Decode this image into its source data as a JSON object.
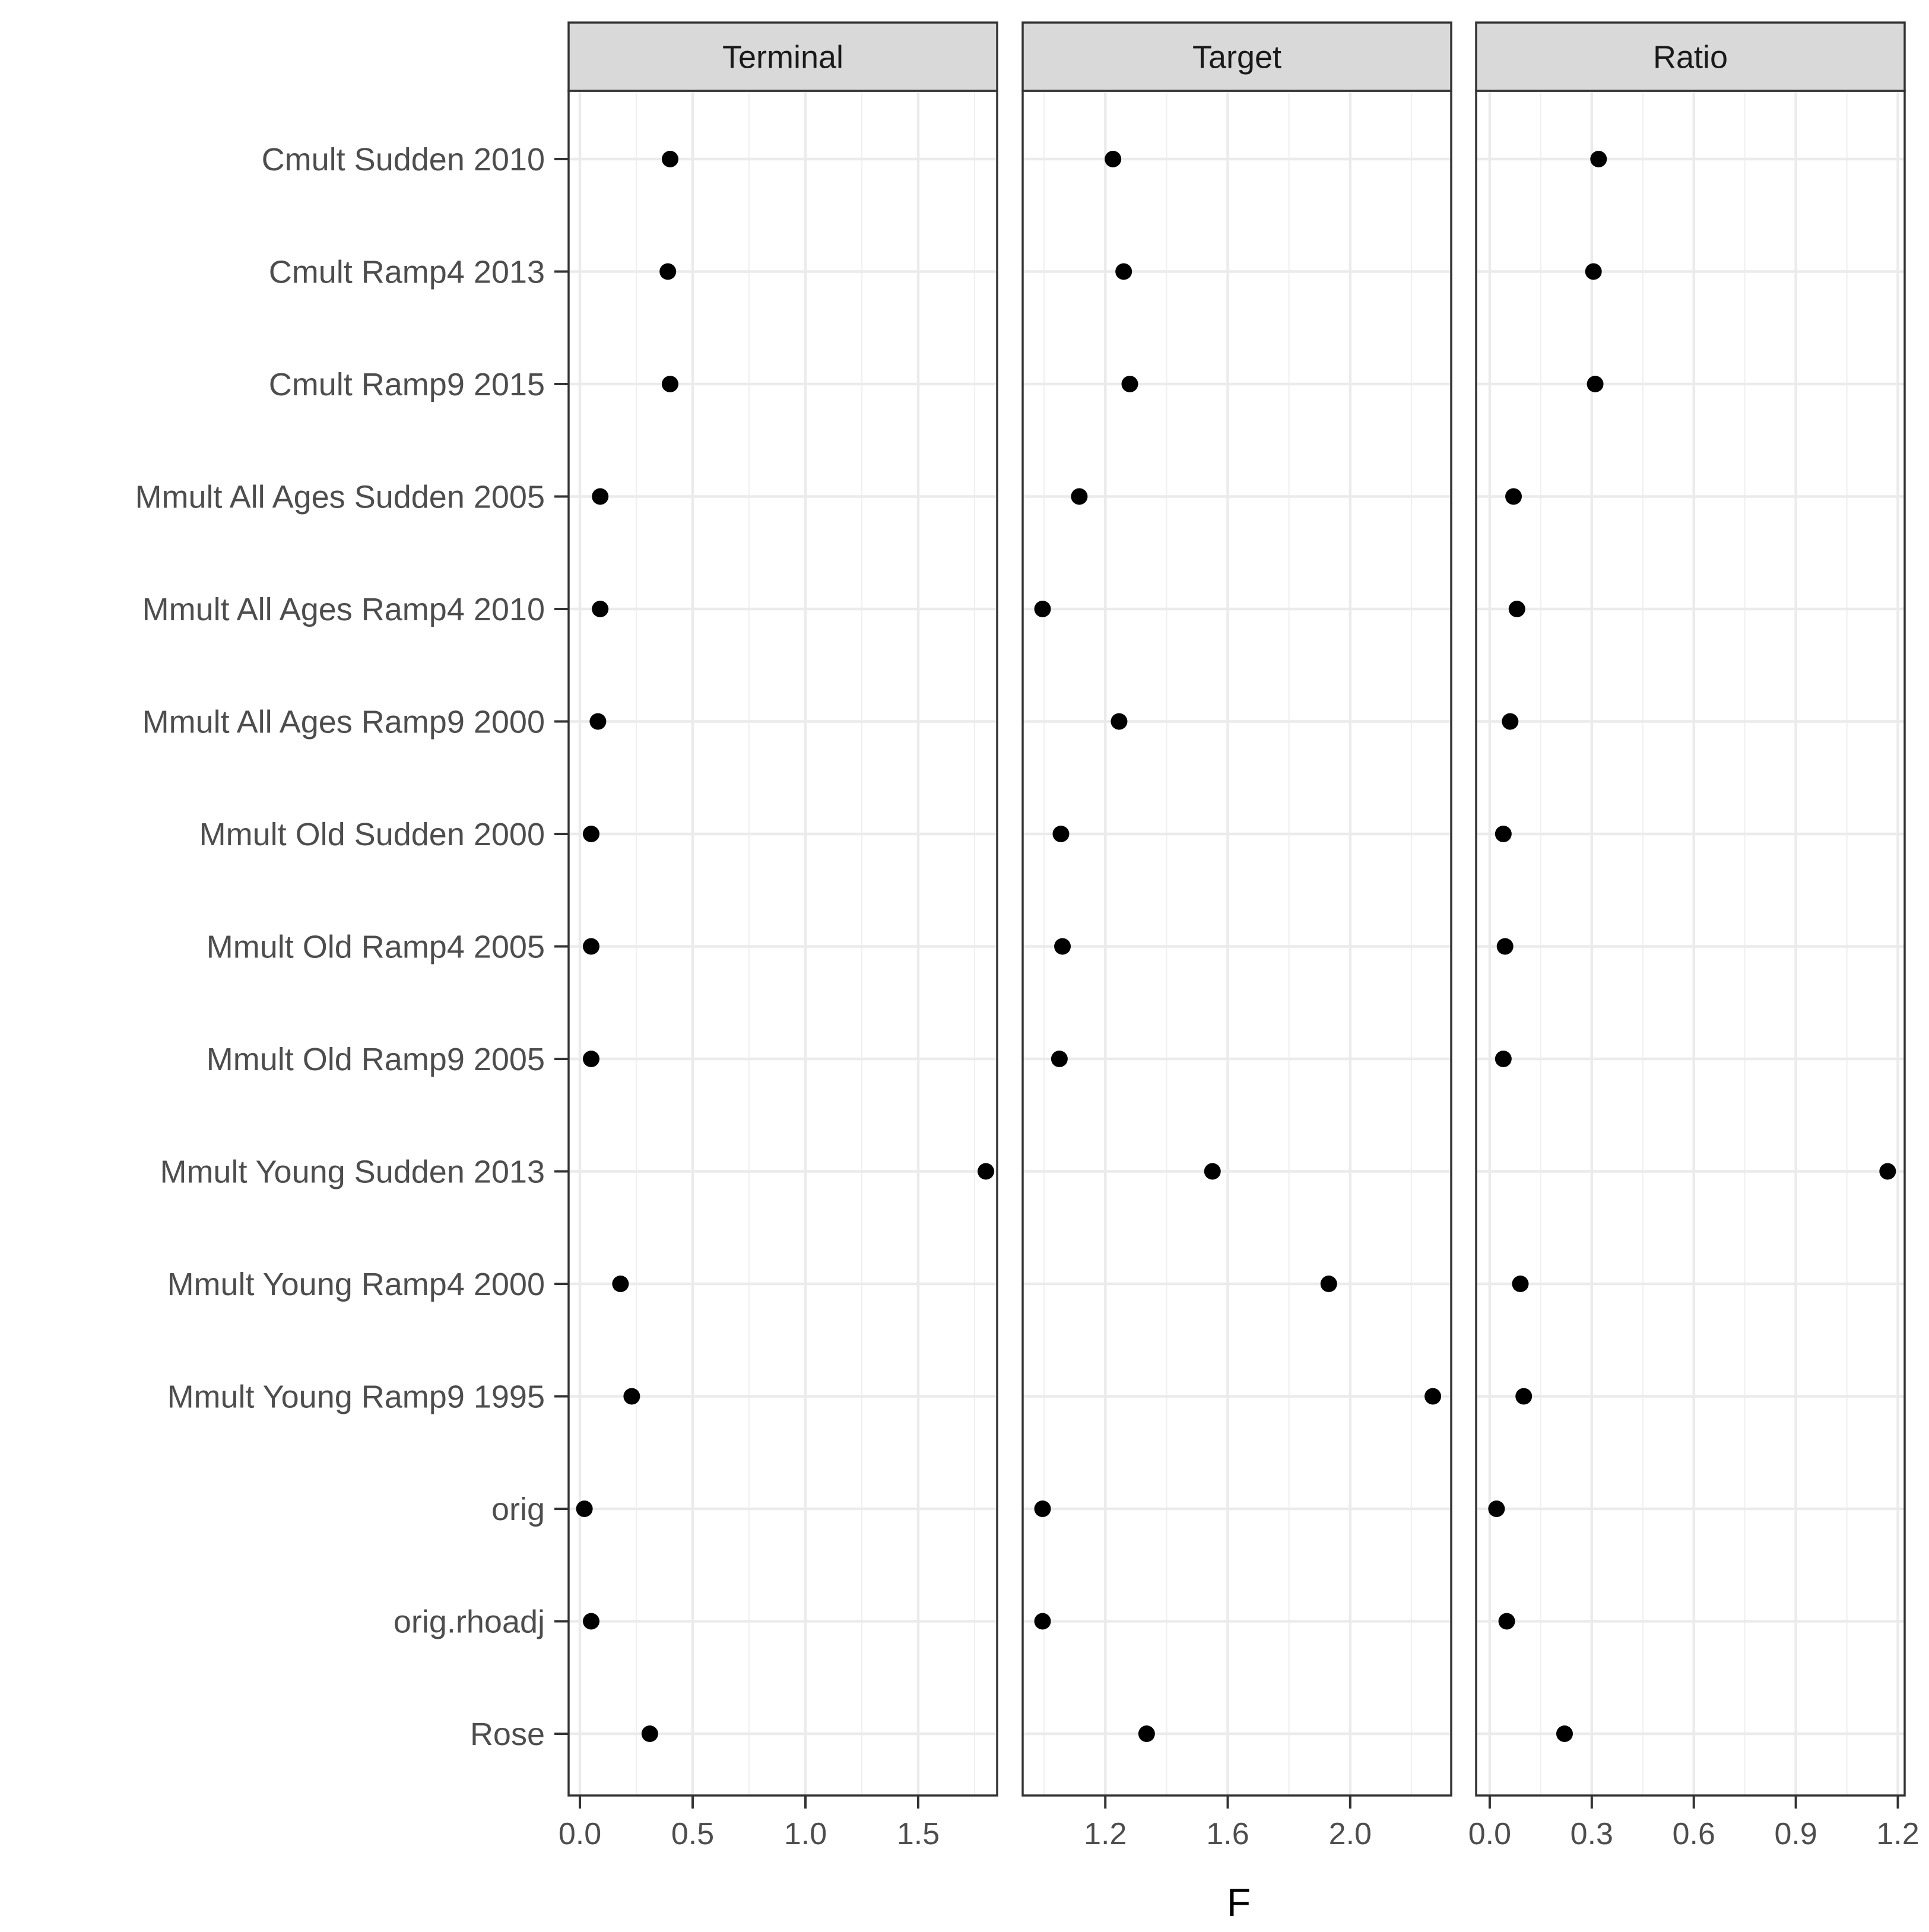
{
  "chart_data": {
    "type": "scatter",
    "xlabel": "F",
    "ylabel": "",
    "grid": true,
    "categories": [
      "Cmult Sudden 2010",
      "Cmult Ramp4 2013",
      "Cmult Ramp9 2015",
      "Mmult All Ages Sudden 2005",
      "Mmult All Ages Ramp4 2010",
      "Mmult All Ages Ramp9 2000",
      "Mmult Old Sudden 2000",
      "Mmult Old Ramp4 2005",
      "Mmult Old Ramp9 2005",
      "Mmult Young Sudden 2013",
      "Mmult Young Ramp4 2000",
      "Mmult Young Ramp9 1995",
      "orig",
      "orig.rhoadj",
      "Rose"
    ],
    "panels": [
      {
        "title": "Terminal",
        "xlim": [
          -0.05,
          1.85
        ],
        "ticks": [
          0.0,
          0.5,
          1.0,
          1.5
        ],
        "tick_labels": [
          "0.0",
          "0.5",
          "1.0",
          "1.5"
        ],
        "values": [
          0.4,
          0.39,
          0.4,
          0.09,
          0.09,
          0.08,
          0.05,
          0.05,
          0.05,
          1.8,
          0.18,
          0.23,
          0.02,
          0.05,
          0.31
        ]
      },
      {
        "title": "Target",
        "xlim": [
          0.93,
          2.33
        ],
        "ticks": [
          1.2,
          1.6,
          2.0
        ],
        "tick_labels": [
          "1.2",
          "1.6",
          "2.0"
        ],
        "values": [
          1.225,
          1.26,
          1.28,
          1.115,
          0.995,
          1.245,
          1.055,
          1.06,
          1.05,
          1.55,
          1.93,
          2.27,
          0.995,
          0.995,
          1.335
        ]
      },
      {
        "title": "Ratio",
        "xlim": [
          -0.04,
          1.22
        ],
        "ticks": [
          0.0,
          0.3,
          0.6,
          0.9,
          1.2
        ],
        "tick_labels": [
          "0.0",
          "0.3",
          "0.6",
          "0.9",
          "1.2"
        ],
        "values": [
          0.32,
          0.305,
          0.31,
          0.07,
          0.08,
          0.06,
          0.04,
          0.045,
          0.04,
          1.17,
          0.09,
          0.1,
          0.02,
          0.05,
          0.22
        ]
      }
    ]
  }
}
